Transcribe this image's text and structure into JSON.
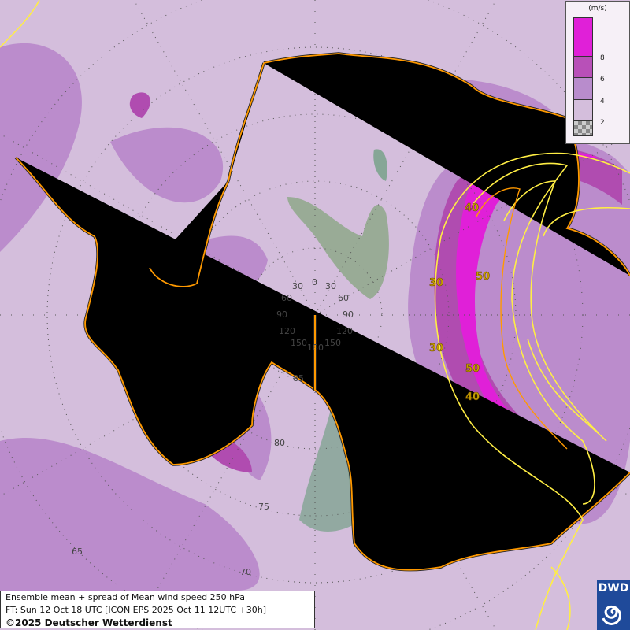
{
  "map": {
    "projection": "south-polar-stereographic",
    "longitude_labels": [
      "0",
      "30",
      "30",
      "60",
      "60",
      "90",
      "90",
      "120",
      "120",
      "150",
      "150",
      "180"
    ],
    "latitude_labels": [
      "85",
      "80",
      "75",
      "70",
      "65"
    ],
    "contour_labels": [
      "40",
      "30",
      "50",
      "30",
      "50",
      "40"
    ],
    "contour_color": "#ffee44",
    "coastline_color": "#ff9900"
  },
  "legend": {
    "unit": "(m/s)",
    "ticks": [
      "8",
      "6",
      "4",
      "2"
    ],
    "colors": [
      "#e020d8",
      "#b850b8",
      "#b88ccc",
      "#d4bedc",
      "checker"
    ]
  },
  "caption": {
    "line1": "Ensemble mean + spread of Mean wind speed 250 hPa",
    "line2": "FT: Sun 12 Oct 18 UTC [ICON EPS 2025 Oct 11 12UTC +30h]",
    "line3": "©2025 Deutscher Wetterdienst"
  },
  "logo": {
    "text": "DWD",
    "color": "#1f4a9a"
  }
}
